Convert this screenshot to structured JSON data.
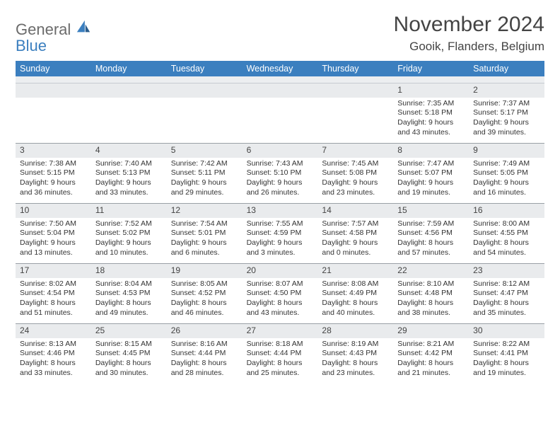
{
  "logo": {
    "word1": "General",
    "word2": "Blue"
  },
  "title": "November 2024",
  "subtitle": "Gooik, Flanders, Belgium",
  "colors": {
    "header_bg": "#3b7fbf",
    "header_fg": "#ffffff",
    "daynum_bg": "#e9ebed",
    "border": "#9aa0a6",
    "text": "#333333"
  },
  "day_names": [
    "Sunday",
    "Monday",
    "Tuesday",
    "Wednesday",
    "Thursday",
    "Friday",
    "Saturday"
  ],
  "weeks": [
    [
      null,
      null,
      null,
      null,
      null,
      {
        "n": "1",
        "sr": "Sunrise: 7:35 AM",
        "ss": "Sunset: 5:18 PM",
        "dl": "Daylight: 9 hours and 43 minutes."
      },
      {
        "n": "2",
        "sr": "Sunrise: 7:37 AM",
        "ss": "Sunset: 5:17 PM",
        "dl": "Daylight: 9 hours and 39 minutes."
      }
    ],
    [
      {
        "n": "3",
        "sr": "Sunrise: 7:38 AM",
        "ss": "Sunset: 5:15 PM",
        "dl": "Daylight: 9 hours and 36 minutes."
      },
      {
        "n": "4",
        "sr": "Sunrise: 7:40 AM",
        "ss": "Sunset: 5:13 PM",
        "dl": "Daylight: 9 hours and 33 minutes."
      },
      {
        "n": "5",
        "sr": "Sunrise: 7:42 AM",
        "ss": "Sunset: 5:11 PM",
        "dl": "Daylight: 9 hours and 29 minutes."
      },
      {
        "n": "6",
        "sr": "Sunrise: 7:43 AM",
        "ss": "Sunset: 5:10 PM",
        "dl": "Daylight: 9 hours and 26 minutes."
      },
      {
        "n": "7",
        "sr": "Sunrise: 7:45 AM",
        "ss": "Sunset: 5:08 PM",
        "dl": "Daylight: 9 hours and 23 minutes."
      },
      {
        "n": "8",
        "sr": "Sunrise: 7:47 AM",
        "ss": "Sunset: 5:07 PM",
        "dl": "Daylight: 9 hours and 19 minutes."
      },
      {
        "n": "9",
        "sr": "Sunrise: 7:49 AM",
        "ss": "Sunset: 5:05 PM",
        "dl": "Daylight: 9 hours and 16 minutes."
      }
    ],
    [
      {
        "n": "10",
        "sr": "Sunrise: 7:50 AM",
        "ss": "Sunset: 5:04 PM",
        "dl": "Daylight: 9 hours and 13 minutes."
      },
      {
        "n": "11",
        "sr": "Sunrise: 7:52 AM",
        "ss": "Sunset: 5:02 PM",
        "dl": "Daylight: 9 hours and 10 minutes."
      },
      {
        "n": "12",
        "sr": "Sunrise: 7:54 AM",
        "ss": "Sunset: 5:01 PM",
        "dl": "Daylight: 9 hours and 6 minutes."
      },
      {
        "n": "13",
        "sr": "Sunrise: 7:55 AM",
        "ss": "Sunset: 4:59 PM",
        "dl": "Daylight: 9 hours and 3 minutes."
      },
      {
        "n": "14",
        "sr": "Sunrise: 7:57 AM",
        "ss": "Sunset: 4:58 PM",
        "dl": "Daylight: 9 hours and 0 minutes."
      },
      {
        "n": "15",
        "sr": "Sunrise: 7:59 AM",
        "ss": "Sunset: 4:56 PM",
        "dl": "Daylight: 8 hours and 57 minutes."
      },
      {
        "n": "16",
        "sr": "Sunrise: 8:00 AM",
        "ss": "Sunset: 4:55 PM",
        "dl": "Daylight: 8 hours and 54 minutes."
      }
    ],
    [
      {
        "n": "17",
        "sr": "Sunrise: 8:02 AM",
        "ss": "Sunset: 4:54 PM",
        "dl": "Daylight: 8 hours and 51 minutes."
      },
      {
        "n": "18",
        "sr": "Sunrise: 8:04 AM",
        "ss": "Sunset: 4:53 PM",
        "dl": "Daylight: 8 hours and 49 minutes."
      },
      {
        "n": "19",
        "sr": "Sunrise: 8:05 AM",
        "ss": "Sunset: 4:52 PM",
        "dl": "Daylight: 8 hours and 46 minutes."
      },
      {
        "n": "20",
        "sr": "Sunrise: 8:07 AM",
        "ss": "Sunset: 4:50 PM",
        "dl": "Daylight: 8 hours and 43 minutes."
      },
      {
        "n": "21",
        "sr": "Sunrise: 8:08 AM",
        "ss": "Sunset: 4:49 PM",
        "dl": "Daylight: 8 hours and 40 minutes."
      },
      {
        "n": "22",
        "sr": "Sunrise: 8:10 AM",
        "ss": "Sunset: 4:48 PM",
        "dl": "Daylight: 8 hours and 38 minutes."
      },
      {
        "n": "23",
        "sr": "Sunrise: 8:12 AM",
        "ss": "Sunset: 4:47 PM",
        "dl": "Daylight: 8 hours and 35 minutes."
      }
    ],
    [
      {
        "n": "24",
        "sr": "Sunrise: 8:13 AM",
        "ss": "Sunset: 4:46 PM",
        "dl": "Daylight: 8 hours and 33 minutes."
      },
      {
        "n": "25",
        "sr": "Sunrise: 8:15 AM",
        "ss": "Sunset: 4:45 PM",
        "dl": "Daylight: 8 hours and 30 minutes."
      },
      {
        "n": "26",
        "sr": "Sunrise: 8:16 AM",
        "ss": "Sunset: 4:44 PM",
        "dl": "Daylight: 8 hours and 28 minutes."
      },
      {
        "n": "27",
        "sr": "Sunrise: 8:18 AM",
        "ss": "Sunset: 4:44 PM",
        "dl": "Daylight: 8 hours and 25 minutes."
      },
      {
        "n": "28",
        "sr": "Sunrise: 8:19 AM",
        "ss": "Sunset: 4:43 PM",
        "dl": "Daylight: 8 hours and 23 minutes."
      },
      {
        "n": "29",
        "sr": "Sunrise: 8:21 AM",
        "ss": "Sunset: 4:42 PM",
        "dl": "Daylight: 8 hours and 21 minutes."
      },
      {
        "n": "30",
        "sr": "Sunrise: 8:22 AM",
        "ss": "Sunset: 4:41 PM",
        "dl": "Daylight: 8 hours and 19 minutes."
      }
    ]
  ]
}
